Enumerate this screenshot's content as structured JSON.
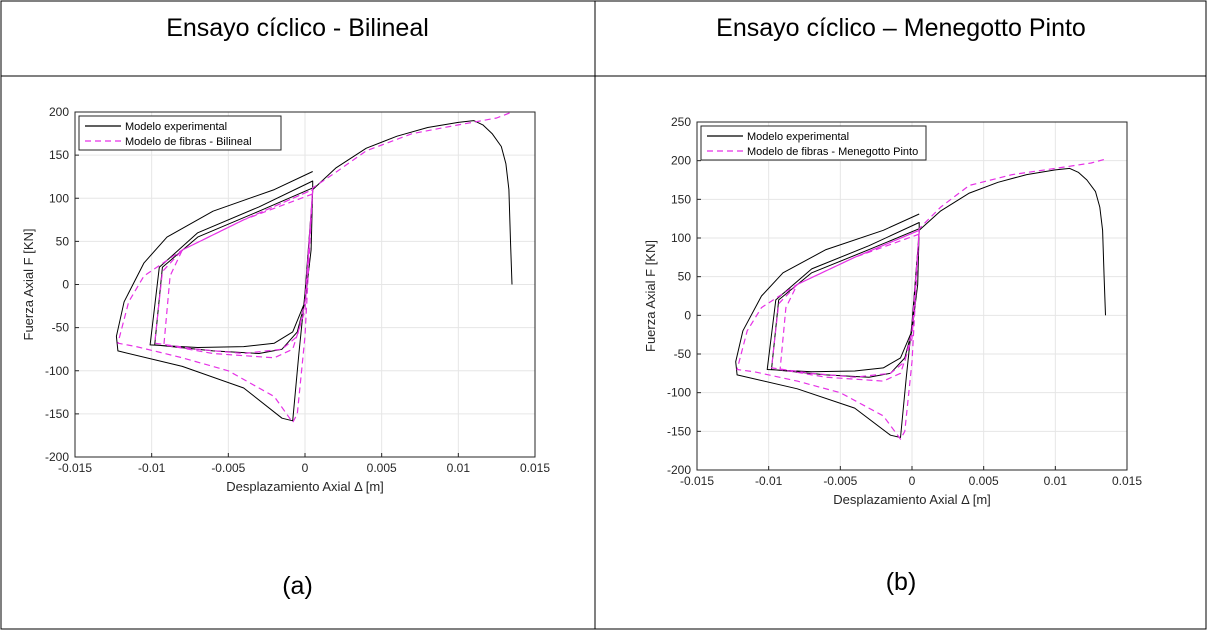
{
  "panels": {
    "left_title": "Ensayo cíclico - Bilineal",
    "right_title": "Ensayo cíclico – Menegotto Pinto",
    "left_caption": "(a)",
    "right_caption": "(b)"
  },
  "colors": {
    "experimental": "#000000",
    "fibras": "#e632e6",
    "grid": "#e6e6e6"
  },
  "chart_data": [
    {
      "type": "line",
      "xlabel": "Desplazamiento Axial Δ [m]",
      "ylabel": "Fuerza Axial F [KN]",
      "xlim": [
        -0.015,
        0.015
      ],
      "ylim": [
        -200,
        200
      ],
      "xticks": [
        -0.015,
        -0.01,
        -0.005,
        0,
        0.005,
        0.01,
        0.015
      ],
      "xtick_labels": [
        "-0.015",
        "-0.01",
        "-0.005",
        "0",
        "0.005",
        "0.01",
        "0.015"
      ],
      "yticks": [
        -200,
        -150,
        -100,
        -50,
        0,
        50,
        100,
        150,
        200
      ],
      "ytick_labels": [
        "-200",
        "-150",
        "-100",
        "-50",
        "0",
        "50",
        "100",
        "150",
        "200"
      ],
      "grid": true,
      "legend_position": "top-left",
      "series": [
        {
          "name": "Modelo experimental",
          "style": "solid",
          "x": [
            0.0005,
            -0.002,
            -0.006,
            -0.009,
            -0.0105,
            -0.0118,
            -0.0123,
            -0.0122,
            -0.008,
            -0.004,
            -0.0015,
            -0.0008,
            -0.0004,
            0.0,
            0.0005,
            0.0005,
            -0.003,
            -0.007,
            -0.0095,
            -0.0101,
            -0.007,
            -0.004,
            -0.002,
            -0.0008,
            0.0,
            0.0004,
            0.0005,
            -0.003,
            -0.007,
            -0.0093,
            -0.0098,
            -0.006,
            -0.003,
            -0.0015,
            -0.0005,
            0.0,
            0.0005,
            0.002,
            0.004,
            0.006,
            0.008,
            0.01,
            0.011,
            0.0116,
            0.0122,
            0.0128,
            0.0131,
            0.0133,
            0.0134,
            0.0135
          ],
          "y": [
            131,
            110,
            85,
            55,
            25,
            -20,
            -60,
            -77,
            -95,
            -120,
            -155,
            -158,
            -80,
            -10,
            108,
            120,
            90,
            60,
            20,
            -70,
            -73,
            -72,
            -68,
            -55,
            -20,
            40,
            112,
            85,
            55,
            20,
            -70,
            -77,
            -80,
            -75,
            -55,
            -20,
            110,
            135,
            158,
            172,
            182,
            188,
            190,
            185,
            175,
            160,
            140,
            110,
            50,
            0
          ]
        },
        {
          "name": "Modelo de fibras - Bilineal",
          "style": "dashed",
          "x": [
            0.0005,
            -0.004,
            -0.008,
            -0.0105,
            -0.0115,
            -0.0122,
            -0.011,
            -0.008,
            -0.005,
            -0.002,
            -0.0008,
            -0.0005,
            0.0,
            0.0005,
            -0.004,
            -0.008,
            -0.0093,
            -0.0098,
            -0.007,
            -0.004,
            -0.0015,
            -0.0005,
            0.0,
            0.0005,
            -0.004,
            -0.008,
            -0.0088,
            -0.0092,
            -0.006,
            -0.002,
            -0.0008,
            0.0,
            0.0005,
            0.002,
            0.004,
            0.007,
            0.01,
            0.0125,
            0.0135
          ],
          "y": [
            105,
            75,
            40,
            10,
            -20,
            -68,
            -72,
            -85,
            -100,
            -130,
            -160,
            -150,
            -60,
            110,
            75,
            40,
            15,
            -68,
            -75,
            -80,
            -75,
            -60,
            -20,
            110,
            75,
            40,
            10,
            -70,
            -80,
            -85,
            -75,
            -30,
            112,
            130,
            155,
            175,
            185,
            193,
            200
          ]
        }
      ]
    },
    {
      "type": "line",
      "xlabel": "Desplazamiento Axial Δ [m]",
      "ylabel": "Fuerza Axial F [KN]",
      "xlim": [
        -0.015,
        0.015
      ],
      "ylim": [
        -200,
        250
      ],
      "xticks": [
        -0.015,
        -0.01,
        -0.005,
        0,
        0.005,
        0.01,
        0.015
      ],
      "xtick_labels": [
        "-0.015",
        "-0.01",
        "-0.005",
        "0",
        "0.005",
        "0.01",
        "0.015"
      ],
      "yticks": [
        -200,
        -150,
        -100,
        -50,
        0,
        50,
        100,
        150,
        200,
        250
      ],
      "ytick_labels": [
        "-200",
        "-150",
        "-100",
        "-50",
        "0",
        "50",
        "100",
        "150",
        "200",
        "250"
      ],
      "grid": true,
      "legend_position": "top-left",
      "series": [
        {
          "name": "Modelo experimental",
          "style": "solid",
          "x": [
            0.0005,
            -0.002,
            -0.006,
            -0.009,
            -0.0105,
            -0.0118,
            -0.0123,
            -0.0122,
            -0.008,
            -0.004,
            -0.0015,
            -0.0008,
            -0.0004,
            0.0,
            0.0005,
            0.0005,
            -0.003,
            -0.007,
            -0.0095,
            -0.0101,
            -0.007,
            -0.004,
            -0.002,
            -0.0008,
            0.0,
            0.0004,
            0.0005,
            -0.003,
            -0.007,
            -0.0093,
            -0.0098,
            -0.006,
            -0.003,
            -0.0015,
            -0.0005,
            0.0,
            0.0005,
            0.002,
            0.004,
            0.006,
            0.008,
            0.01,
            0.011,
            0.0116,
            0.0122,
            0.0128,
            0.0131,
            0.0133,
            0.0134,
            0.0135
          ],
          "y": [
            131,
            110,
            85,
            55,
            25,
            -20,
            -60,
            -77,
            -95,
            -120,
            -155,
            -158,
            -80,
            -10,
            108,
            120,
            90,
            60,
            20,
            -70,
            -73,
            -72,
            -68,
            -55,
            -20,
            40,
            112,
            85,
            55,
            20,
            -70,
            -77,
            -80,
            -75,
            -55,
            -20,
            110,
            135,
            158,
            172,
            182,
            188,
            190,
            185,
            175,
            160,
            140,
            110,
            50,
            0
          ]
        },
        {
          "name": "Modelo de fibras - Menegotto Pinto",
          "style": "dashed",
          "x": [
            0.0005,
            -0.004,
            -0.008,
            -0.0105,
            -0.0115,
            -0.0122,
            -0.011,
            -0.008,
            -0.005,
            -0.002,
            -0.0008,
            -0.0005,
            0.0,
            0.0005,
            -0.004,
            -0.008,
            -0.0093,
            -0.0098,
            -0.007,
            -0.004,
            -0.0015,
            -0.0005,
            0.0,
            0.0005,
            -0.004,
            -0.008,
            -0.0088,
            -0.0092,
            -0.006,
            -0.002,
            -0.0008,
            0.0,
            0.0005,
            0.002,
            0.004,
            0.007,
            0.01,
            0.0125,
            0.0135
          ],
          "y": [
            105,
            75,
            40,
            10,
            -20,
            -70,
            -73,
            -85,
            -100,
            -130,
            -160,
            -150,
            -60,
            110,
            75,
            40,
            15,
            -68,
            -75,
            -80,
            -75,
            -60,
            -20,
            110,
            75,
            40,
            10,
            -70,
            -80,
            -85,
            -75,
            -30,
            112,
            140,
            168,
            182,
            190,
            197,
            202
          ]
        }
      ]
    }
  ]
}
